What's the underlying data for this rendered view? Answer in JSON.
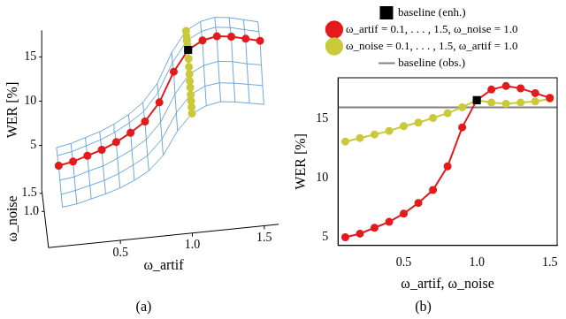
{
  "chart_data": [
    {
      "type": "surface",
      "title": "(a)",
      "x_label": "ω_artif",
      "y_label": "ω_noise",
      "z_label": "WER [%]",
      "xlim": [
        0,
        1.6
      ],
      "ylim": [
        0,
        1.6
      ],
      "zlim": [
        0,
        18
      ],
      "xticks": [
        0.5,
        {
          "value": 1,
          "label": "1.0"
        },
        1.5
      ],
      "yticks": [
        {
          "value": 1,
          "label": "1.0"
        },
        1.5
      ],
      "zticks": [
        5,
        10,
        15
      ],
      "surface": {
        "color": "#4a90d9",
        "x": [
          0.1,
          0.2,
          0.3,
          0.4,
          0.5,
          0.6,
          0.7,
          0.8,
          0.9,
          1.0,
          1.1,
          1.2,
          1.3,
          1.4,
          1.5
        ],
        "y": [
          0.1,
          0.4,
          0.7,
          1.0,
          1.3,
          1.5
        ],
        "z": [
          [
            4.0,
            4.2,
            4.6,
            5.0,
            5.5,
            6.2,
            7.1,
            8.7,
            11.3,
            13.1,
            13.8,
            14.1,
            13.9,
            13.6,
            13.3
          ],
          [
            4.2,
            4.5,
            4.9,
            5.3,
            5.9,
            6.7,
            7.6,
            9.3,
            12.1,
            14.0,
            14.8,
            15.0,
            14.8,
            14.5,
            14.2
          ],
          [
            4.6,
            4.8,
            5.3,
            5.7,
            6.4,
            7.2,
            8.2,
            10.0,
            13.0,
            15.1,
            15.9,
            16.2,
            16.0,
            15.6,
            15.3
          ],
          [
            5.0,
            5.3,
            5.8,
            6.3,
            7.0,
            7.9,
            9.0,
            11.0,
            14.3,
            16.6,
            17.5,
            17.8,
            17.6,
            17.2,
            16.8
          ],
          [
            4.9,
            5.2,
            5.7,
            6.2,
            6.9,
            7.8,
            8.9,
            10.9,
            14.1,
            16.4,
            17.3,
            17.6,
            17.4,
            17.0,
            16.6
          ],
          [
            5.0,
            5.3,
            5.8,
            6.3,
            7.0,
            7.9,
            9.1,
            11.1,
            14.4,
            16.7,
            17.6,
            17.9,
            17.7,
            17.3,
            16.9
          ]
        ]
      },
      "series": [
        {
          "color": "#e41a1c",
          "marker": "circle",
          "x": [
            0.1,
            0.2,
            0.3,
            0.4,
            0.5,
            0.6,
            0.7,
            0.8,
            0.9,
            1.0,
            1.1,
            1.2,
            1.3,
            1.4,
            1.5
          ],
          "y": [
            1.0,
            1.0,
            1.0,
            1.0,
            1.0,
            1.0,
            1.0,
            1.0,
            1.0,
            1.0,
            1.0,
            1.0,
            1.0,
            1.0,
            1.0
          ],
          "z": [
            5.0,
            5.3,
            5.8,
            6.3,
            7.0,
            7.9,
            9.0,
            11.0,
            14.3,
            16.6,
            17.5,
            17.8,
            17.6,
            17.2,
            16.8
          ]
        },
        {
          "color": "#c9c93a",
          "marker": "circle",
          "x": [
            1.0,
            1.0,
            1.0,
            1.0,
            1.0,
            1.0,
            1.0,
            1.0,
            1.0,
            1.0,
            1.0,
            1.0,
            1.0,
            1.0,
            1.0
          ],
          "y": [
            0.1,
            0.2,
            0.3,
            0.4,
            0.5,
            0.6,
            0.7,
            0.8,
            0.9,
            1.0,
            1.1,
            1.2,
            1.3,
            1.4,
            1.5
          ],
          "z": [
            13.1,
            13.4,
            13.7,
            14.0,
            14.4,
            14.7,
            15.1,
            15.5,
            16.0,
            16.6,
            16.4,
            16.3,
            16.4,
            16.5,
            16.7
          ]
        },
        {
          "color": "#000000",
          "marker": "square",
          "x": [
            1.0
          ],
          "y": [
            1.0
          ],
          "z": [
            16.6
          ]
        }
      ]
    },
    {
      "type": "line",
      "title": "(b)",
      "x_label": "ω_artif, ω_noise",
      "y_label": "WER [%]",
      "xlim": [
        0.05,
        1.55
      ],
      "ylim": [
        4.3,
        18.5
      ],
      "xticks": [
        0.5,
        {
          "value": 1,
          "label": "1.0"
        },
        1.5
      ],
      "yticks": [
        5,
        10,
        15
      ],
      "grid": false,
      "legend": "top",
      "series": [
        {
          "name": "ω_artif = 0.1, . . . , 1.5, ω_noise = 1.0",
          "color": "#e41a1c",
          "marker": "circle",
          "x": [
            0.1,
            0.2,
            0.3,
            0.4,
            0.5,
            0.6,
            0.7,
            0.8,
            0.9,
            1.0,
            1.1,
            1.2,
            1.3,
            1.4,
            1.5
          ],
          "values": [
            5.0,
            5.3,
            5.8,
            6.3,
            7.0,
            7.9,
            9.0,
            11.0,
            14.3,
            16.6,
            17.5,
            17.8,
            17.6,
            17.2,
            16.8
          ]
        },
        {
          "name": "ω_noise = 0.1, . . . , 1.5, ω_artif = 1.0",
          "color": "#c9c93a",
          "marker": "circle",
          "x": [
            0.1,
            0.2,
            0.3,
            0.4,
            0.5,
            0.6,
            0.7,
            0.8,
            0.9,
            1.0,
            1.1,
            1.2,
            1.3,
            1.4,
            1.5
          ],
          "values": [
            13.1,
            13.4,
            13.7,
            14.0,
            14.4,
            14.7,
            15.1,
            15.5,
            16.0,
            16.6,
            16.4,
            16.3,
            16.4,
            16.5,
            16.7
          ]
        },
        {
          "name": "baseline (obs.)",
          "type": "hline",
          "color": "#808080",
          "values": [
            16.0
          ]
        },
        {
          "name": "baseline (enh.)",
          "type": "scatter",
          "marker": "square",
          "color": "#000000",
          "x": [
            1.0
          ],
          "values": [
            16.6
          ]
        }
      ]
    }
  ]
}
